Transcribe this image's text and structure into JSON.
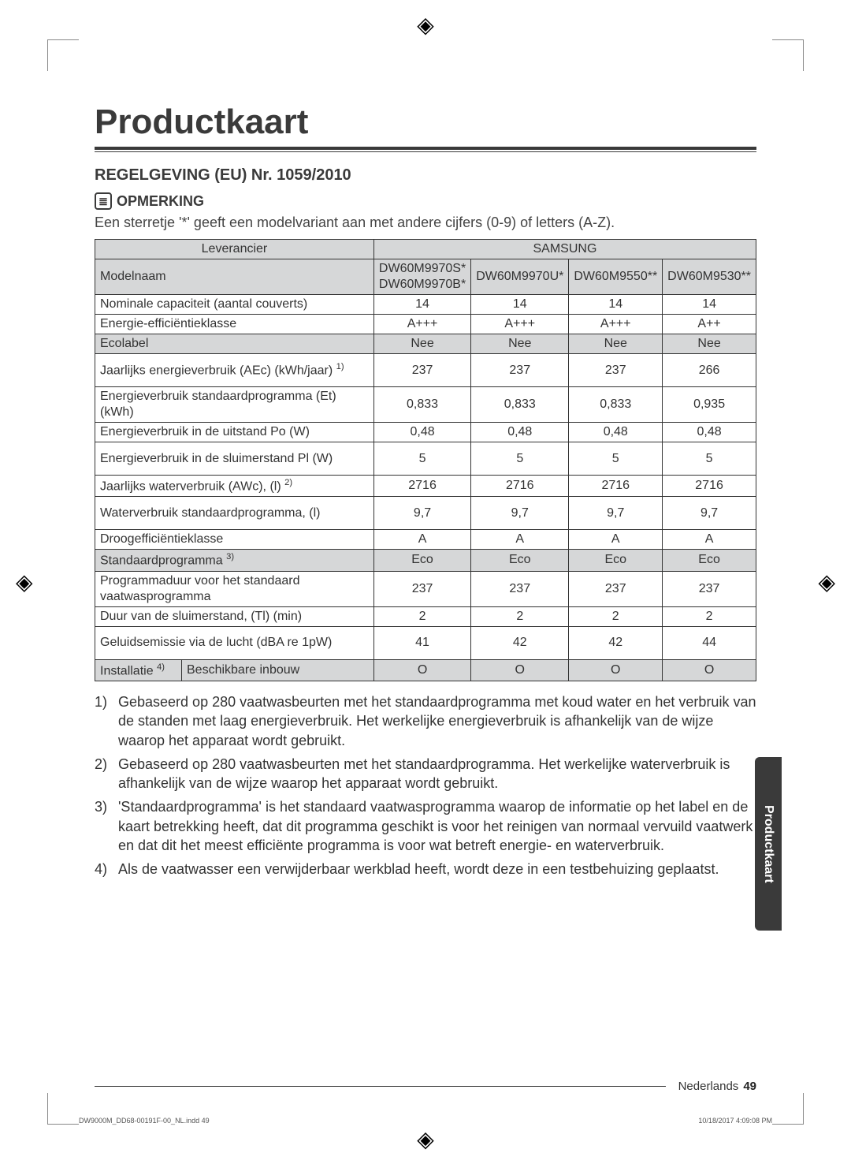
{
  "title": "Productkaart",
  "regulation_heading": "REGELGEVING (EU) Nr. 1059/2010",
  "note_label": "OPMERKING",
  "note_text": "Een sterretje '*' geeft een modelvariant aan met andere cijfers (0-9) of letters (A-Z).",
  "table": {
    "supplier_label": "Leverancier",
    "supplier_value": "SAMSUNG",
    "model_label": "Modelnaam",
    "models": [
      "DW60M9970S*\nDW60M9970B*",
      "DW60M9970U*",
      "DW60M9550**",
      "DW60M9530**"
    ],
    "rows": [
      {
        "label": "Nominale capaciteit (aantal couverts)",
        "vals": [
          "14",
          "14",
          "14",
          "14"
        ]
      },
      {
        "label": "Energie-efficiëntieklasse",
        "vals": [
          "A+++",
          "A+++",
          "A+++",
          "A++"
        ]
      },
      {
        "label": "Ecolabel",
        "vals": [
          "Nee",
          "Nee",
          "Nee",
          "Nee"
        ],
        "shaded": true
      },
      {
        "label": "Jaarlijks energieverbruik (AEc) (kWh/jaar) ",
        "sup": "1)",
        "vals": [
          "237",
          "237",
          "237",
          "266"
        ],
        "tall": true
      },
      {
        "label": "Energieverbruik standaardprogramma (Et) (kWh)",
        "vals": [
          "0,833",
          "0,833",
          "0,833",
          "0,935"
        ],
        "tall": true
      },
      {
        "label": "Energieverbruik in de uitstand Po (W)",
        "vals": [
          "0,48",
          "0,48",
          "0,48",
          "0,48"
        ]
      },
      {
        "label": "Energieverbruik in de sluimerstand Pl (W)",
        "vals": [
          "5",
          "5",
          "5",
          "5"
        ],
        "tall": true
      },
      {
        "label": "Jaarlijks waterverbruik (AWc), (l) ",
        "sup": "2)",
        "vals": [
          "2716",
          "2716",
          "2716",
          "2716"
        ]
      },
      {
        "label": "Waterverbruik standaardprogramma, (l)",
        "vals": [
          "9,7",
          "9,7",
          "9,7",
          "9,7"
        ],
        "tall": true
      },
      {
        "label": "Droogefficiëntieklasse",
        "vals": [
          "A",
          "A",
          "A",
          "A"
        ]
      },
      {
        "label": "Standaardprogramma ",
        "sup": "3)",
        "vals": [
          "Eco",
          "Eco",
          "Eco",
          "Eco"
        ],
        "shaded": true
      },
      {
        "label": "Programmaduur voor het standaard vaatwasprogramma",
        "vals": [
          "237",
          "237",
          "237",
          "237"
        ],
        "tall": true
      },
      {
        "label": "Duur van de sluimerstand, (Tl) (min)",
        "vals": [
          "2",
          "2",
          "2",
          "2"
        ]
      },
      {
        "label": "Geluidsemissie via de lucht (dBA re 1pW)",
        "vals": [
          "41",
          "42",
          "42",
          "44"
        ],
        "tall": true
      }
    ],
    "install_row": {
      "label1": "Installatie ",
      "sup": "4)",
      "label2": "Beschikbare inbouw",
      "vals": [
        "O",
        "O",
        "O",
        "O"
      ]
    }
  },
  "footnotes": [
    {
      "n": "1)",
      "t": "Gebaseerd op 280 vaatwasbeurten met het standaardprogramma met koud water en het verbruik van de standen met laag energieverbruik. Het werkelijke energieverbruik is afhankelijk van de wijze waarop het apparaat wordt gebruikt."
    },
    {
      "n": "2)",
      "t": "Gebaseerd op 280 vaatwasbeurten met het standaardprogramma. Het werkelijke waterverbruik is afhankelijk van de wijze waarop het apparaat wordt gebruikt."
    },
    {
      "n": "3)",
      "t": "'Standaardprogramma' is het standaard vaatwasprogramma waarop de informatie op het label en de kaart betrekking heeft, dat dit programma geschikt is voor het reinigen van normaal vervuild vaatwerk en dat dit het meest efficiënte programma is voor wat betreft energie- en waterverbruik."
    },
    {
      "n": "4)",
      "t": "Als de vaatwasser een verwijderbaar werkblad heeft, wordt deze in een testbehuizing geplaatst."
    }
  ],
  "side_tab": "Productkaart",
  "footer_lang": "Nederlands",
  "footer_page": "49",
  "tiny_left": "DW9000M_DD68-00191F-00_NL.indd   49",
  "tiny_right": "10/18/2017   4:09:08 PM",
  "colors": {
    "shade": "#d6d7d8",
    "rule": "#3a3a3a"
  }
}
